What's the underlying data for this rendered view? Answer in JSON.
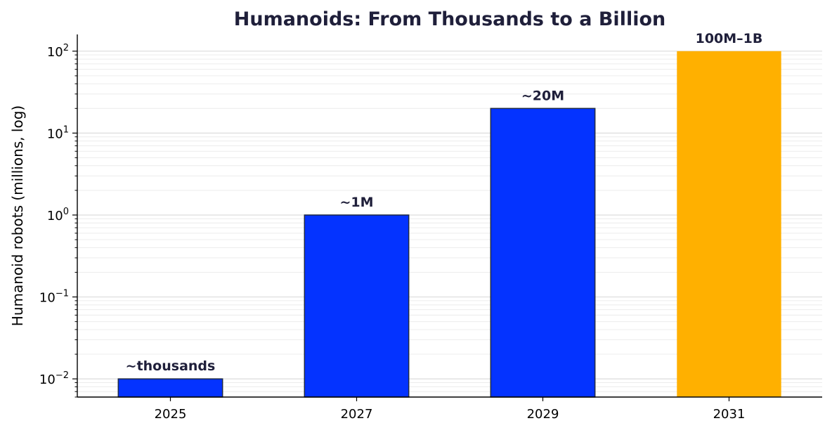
{
  "chart_data": {
    "type": "bar",
    "title": "Humanoids: From Thousands to a Billion",
    "xlabel": "",
    "ylabel": "Humanoid robots (millions, log)",
    "y_scale": "log",
    "ylim": [
      0.006,
      160
    ],
    "y_ticks": [
      {
        "value": 0.01,
        "base": "10",
        "exp": "−2"
      },
      {
        "value": 0.1,
        "base": "10",
        "exp": "−1"
      },
      {
        "value": 1,
        "base": "10",
        "exp": "0"
      },
      {
        "value": 10,
        "base": "10",
        "exp": "1"
      },
      {
        "value": 100,
        "base": "10",
        "exp": "2"
      }
    ],
    "grid": "horizontal major and minor",
    "categories": [
      "2025",
      "2027",
      "2029",
      "2031"
    ],
    "values": [
      0.01,
      1,
      20,
      100
    ],
    "data_labels": [
      "~thousands",
      "~1M",
      "~20M",
      "100M–1B"
    ],
    "colors": [
      "#0433ff",
      "#0433ff",
      "#0433ff",
      "#ffb000"
    ]
  }
}
